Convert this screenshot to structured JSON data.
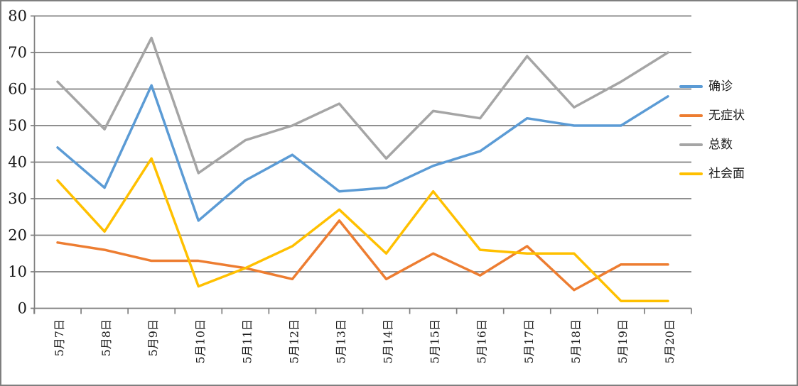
{
  "chart_data": {
    "type": "line",
    "title": "",
    "xlabel": "",
    "ylabel": "",
    "categories": [
      "5月7日",
      "5月8日",
      "5月9日",
      "5月10日",
      "5月11日",
      "5月12日",
      "5月13日",
      "5月14日",
      "5月15日",
      "5月16日",
      "5月17日",
      "5月18日",
      "5月19日",
      "5月20日"
    ],
    "series": [
      {
        "name": "确诊",
        "color": "#5B9BD5",
        "values": [
          44,
          33,
          61,
          24,
          35,
          42,
          32,
          33,
          39,
          43,
          52,
          50,
          50,
          58
        ]
      },
      {
        "name": "无症状",
        "color": "#ED7D31",
        "values": [
          18,
          16,
          13,
          13,
          11,
          8,
          24,
          8,
          15,
          9,
          17,
          5,
          12,
          12
        ]
      },
      {
        "name": "总数",
        "color": "#A5A5A5",
        "values": [
          62,
          49,
          74,
          37,
          46,
          50,
          56,
          41,
          54,
          52,
          69,
          55,
          62,
          70
        ]
      },
      {
        "name": "社会面",
        "color": "#FFC000",
        "values": [
          35,
          21,
          41,
          6,
          11,
          17,
          27,
          15,
          32,
          16,
          15,
          15,
          2,
          2
        ]
      }
    ],
    "ylim": [
      0,
      80
    ],
    "y_ticks": [
      0,
      10,
      20,
      30,
      40,
      50,
      60,
      70,
      80
    ],
    "grid": "horizontal",
    "legend_position": "right",
    "x_label_rotation": -90
  },
  "theme": {
    "background": "#FFFFFF",
    "border_color": "#7F7F7F",
    "grid_color": "#7F7F7F",
    "text_color": "#1A1A1A"
  }
}
